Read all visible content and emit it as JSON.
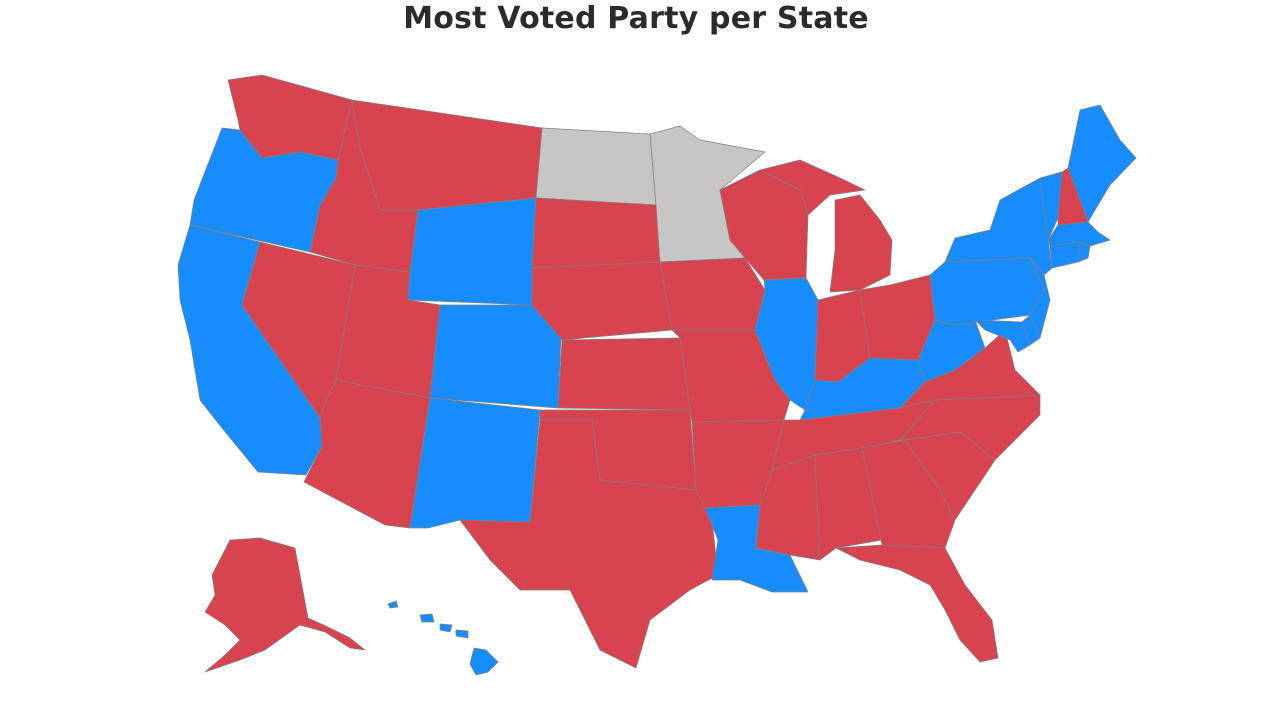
{
  "title": "Most Voted Party per State",
  "colors": {
    "red": "#d7434f",
    "blue": "#178cfc",
    "gray": "#c8c6c4"
  },
  "states": {
    "WA": "red",
    "OR": "blue",
    "CA": "blue",
    "NV": "red",
    "ID": "red",
    "MT": "red",
    "WY": "blue",
    "UT": "red",
    "AZ": "red",
    "CO": "blue",
    "NM": "blue",
    "ND": "gray",
    "SD": "red",
    "NE": "red",
    "KS": "red",
    "OK": "red",
    "TX": "red",
    "MN": "gray",
    "IA": "red",
    "MO": "red",
    "AR": "red",
    "LA": "blue",
    "WI": "red",
    "IL": "blue",
    "MI": "red",
    "IN": "red",
    "OH": "red",
    "KY": "blue",
    "TN": "red",
    "MS": "red",
    "AL": "red",
    "GA": "red",
    "FL": "red",
    "SC": "red",
    "NC": "red",
    "VA": "red",
    "WV": "blue",
    "PA": "blue",
    "NY": "blue",
    "VT": "blue",
    "NH": "red",
    "ME": "blue",
    "MA": "blue",
    "CT": "blue",
    "RI": "blue",
    "NJ": "blue",
    "DE": "blue",
    "MD": "blue",
    "AK": "red",
    "HI": "blue"
  }
}
